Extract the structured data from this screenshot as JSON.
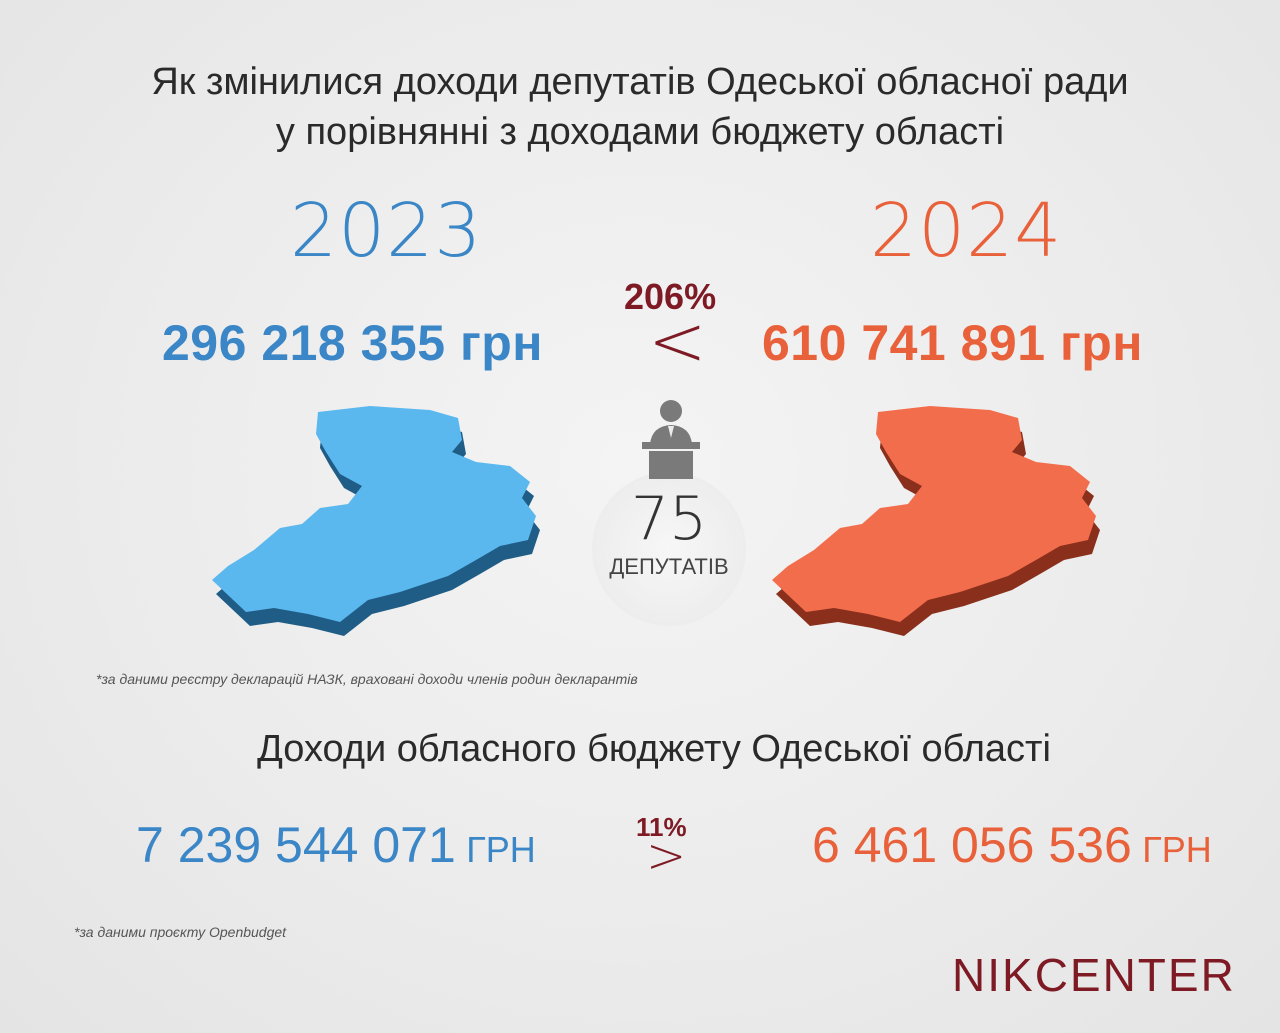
{
  "title": {
    "line1": "Як змінилися доходи депутатів Одеської обласної ради",
    "line2": "у порівнянні з доходами бюджету області"
  },
  "year_left": "2023",
  "year_right": "2024",
  "deputies": {
    "left_amount": "296 218 355 грн",
    "right_amount": "610 741 891 грн",
    "percent": "206%",
    "comparison": "<",
    "count": "75",
    "count_label": "ДЕПУТАТІВ",
    "note": "*за даними реєстру декларацій НАЗК, враховані доходи членів родин декларантів"
  },
  "budget": {
    "heading": "Доходи обласного бюджету Одеської області",
    "left_amount": "7 239 544 071",
    "left_unit": "ГРН",
    "right_amount": "6 461 056 536",
    "right_unit": "ГРН",
    "percent": "11%",
    "comparison": ">",
    "note": "*за даними проєкту Openbudget"
  },
  "logo": {
    "left": "NIK",
    "right": "CENTER"
  },
  "colors": {
    "blue": "#3a86c6",
    "orange": "#e8613a",
    "map_blue": "#5bb8ef",
    "map_orange": "#f26d4b",
    "accent": "#7d1a24"
  }
}
